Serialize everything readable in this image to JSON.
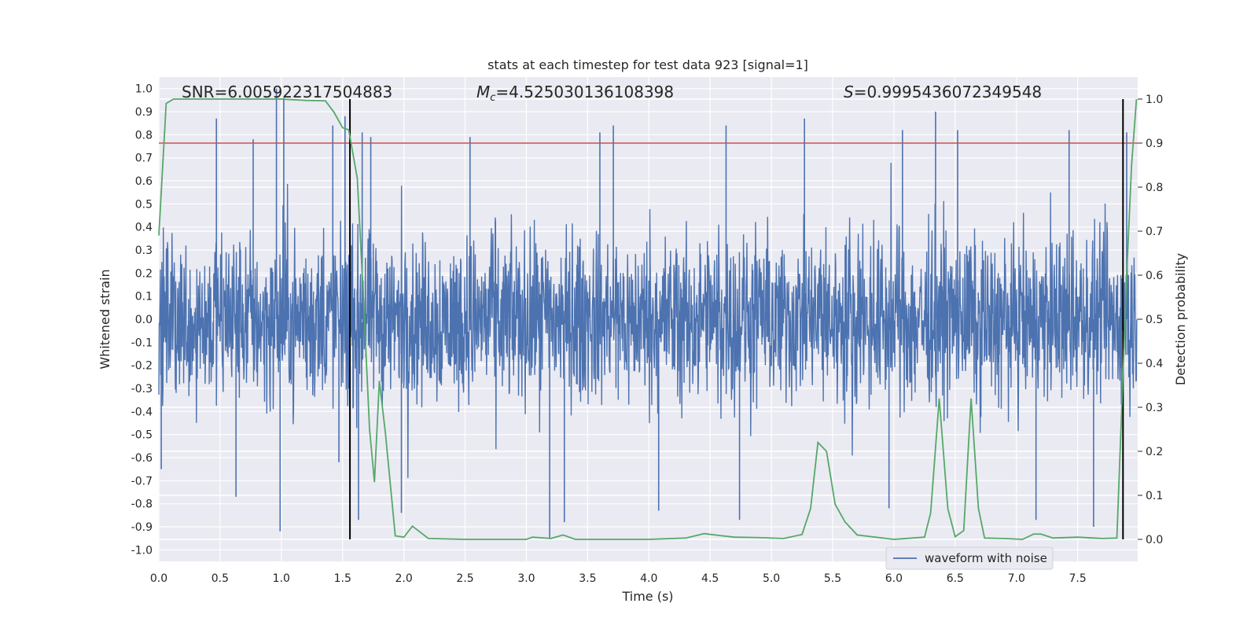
{
  "chart_data": {
    "type": "line",
    "title": "stats at each timestep for test data 923 [signal=1]",
    "xlabel": "Time (s)",
    "ylabel_left": "Whitened strain",
    "ylabel_right": "Detection probability",
    "xlim": [
      0.0,
      7.99
    ],
    "ylim_left": [
      -1.05,
      1.05
    ],
    "ylim_right": [
      -0.05,
      1.05
    ],
    "x_ticks": [
      "0.0",
      "0.5",
      "1.0",
      "1.5",
      "2.0",
      "2.5",
      "3.0",
      "3.5",
      "4.0",
      "4.5",
      "5.0",
      "5.5",
      "6.0",
      "6.5",
      "7.0",
      "7.5"
    ],
    "y_ticks_left": [
      "-1.0",
      "-0.9",
      "-0.8",
      "-0.7",
      "-0.6",
      "-0.5",
      "-0.4",
      "-0.3",
      "-0.2",
      "-0.1",
      "0.0",
      "0.1",
      "0.2",
      "0.3",
      "0.4",
      "0.5",
      "0.6",
      "0.7",
      "0.8",
      "0.9",
      "1.0"
    ],
    "y_ticks_right": [
      "0.0",
      "0.1",
      "0.2",
      "0.3",
      "0.4",
      "0.5",
      "0.6",
      "0.7",
      "0.8",
      "0.9",
      "1.0"
    ],
    "annotations": {
      "snr_label": "SNR",
      "snr_value": "=6.005922317504883",
      "mc_symbol": "M",
      "mc_subscript": "c",
      "mc_value": "=4.525030136108398",
      "s_symbol": "S",
      "s_value": "=0.9995436072349548"
    },
    "threshold": {
      "value": 0.9,
      "axis": "right",
      "color": "#c44e52"
    },
    "vertical_markers": [
      1.56,
      7.87
    ],
    "grid": true,
    "legend": {
      "position": "bottom-right",
      "entries": [
        "waveform with noise"
      ]
    },
    "series": [
      {
        "name": "waveform with noise",
        "axis": "left",
        "color": "#4c72b0",
        "style": "dense noisy waveform",
        "typical_envelope": 0.42,
        "notable_peaks": [
          {
            "x": 0.47,
            "y": 0.87
          },
          {
            "x": 0.77,
            "y": 0.78
          },
          {
            "x": 0.96,
            "y": 1.0
          },
          {
            "x": 1.02,
            "y": 0.96
          },
          {
            "x": 1.42,
            "y": 0.84
          },
          {
            "x": 1.52,
            "y": 0.88
          },
          {
            "x": 1.66,
            "y": 0.81
          },
          {
            "x": 1.73,
            "y": 0.79
          },
          {
            "x": 2.54,
            "y": 0.79
          },
          {
            "x": 3.6,
            "y": 0.81
          },
          {
            "x": 3.71,
            "y": 0.84
          },
          {
            "x": 4.63,
            "y": 0.84
          },
          {
            "x": 5.27,
            "y": 0.87
          },
          {
            "x": 6.07,
            "y": 0.82
          },
          {
            "x": 6.34,
            "y": 0.9
          },
          {
            "x": 6.52,
            "y": 0.82
          },
          {
            "x": 7.43,
            "y": 0.82
          },
          {
            "x": 7.9,
            "y": 0.81
          }
        ],
        "notable_troughs": [
          {
            "x": 0.02,
            "y": -0.65
          },
          {
            "x": 0.63,
            "y": -0.77
          },
          {
            "x": 0.99,
            "y": -0.92
          },
          {
            "x": 1.47,
            "y": -0.62
          },
          {
            "x": 1.63,
            "y": -0.87
          },
          {
            "x": 1.98,
            "y": -0.84
          },
          {
            "x": 3.19,
            "y": -0.95
          },
          {
            "x": 3.31,
            "y": -0.88
          },
          {
            "x": 4.08,
            "y": -0.83
          },
          {
            "x": 4.74,
            "y": -0.87
          },
          {
            "x": 5.96,
            "y": -0.82
          },
          {
            "x": 7.16,
            "y": -0.87
          },
          {
            "x": 7.63,
            "y": -0.9
          }
        ]
      },
      {
        "name": "",
        "axis": "right",
        "color": "#55a868",
        "points": [
          [
            0.0,
            0.69
          ],
          [
            0.06,
            0.99
          ],
          [
            0.12,
            1.0
          ],
          [
            0.5,
            1.0
          ],
          [
            1.0,
            1.0
          ],
          [
            1.2,
            0.997
          ],
          [
            1.36,
            0.996
          ],
          [
            1.43,
            0.97
          ],
          [
            1.5,
            0.935
          ],
          [
            1.55,
            0.93
          ],
          [
            1.62,
            0.82
          ],
          [
            1.67,
            0.55
          ],
          [
            1.72,
            0.25
          ],
          [
            1.76,
            0.13
          ],
          [
            1.8,
            0.36
          ],
          [
            1.85,
            0.24
          ],
          [
            1.93,
            0.008
          ],
          [
            2.0,
            0.005
          ],
          [
            2.07,
            0.03
          ],
          [
            2.2,
            0.002
          ],
          [
            2.5,
            0.0
          ],
          [
            2.8,
            0.0
          ],
          [
            3.0,
            0.0
          ],
          [
            3.05,
            0.005
          ],
          [
            3.2,
            0.002
          ],
          [
            3.3,
            0.01
          ],
          [
            3.4,
            0.0
          ],
          [
            4.0,
            0.0
          ],
          [
            4.3,
            0.003
          ],
          [
            4.45,
            0.013
          ],
          [
            4.6,
            0.008
          ],
          [
            4.7,
            0.005
          ],
          [
            4.9,
            0.004
          ],
          [
            5.1,
            0.002
          ],
          [
            5.25,
            0.011
          ],
          [
            5.32,
            0.07
          ],
          [
            5.38,
            0.22
          ],
          [
            5.45,
            0.2
          ],
          [
            5.52,
            0.08
          ],
          [
            5.6,
            0.04
          ],
          [
            5.7,
            0.01
          ],
          [
            6.0,
            0.0
          ],
          [
            6.25,
            0.005
          ],
          [
            6.3,
            0.06
          ],
          [
            6.37,
            0.32
          ],
          [
            6.44,
            0.07
          ],
          [
            6.5,
            0.006
          ],
          [
            6.57,
            0.02
          ],
          [
            6.63,
            0.32
          ],
          [
            6.69,
            0.07
          ],
          [
            6.74,
            0.003
          ],
          [
            6.9,
            0.002
          ],
          [
            7.05,
            0.0
          ],
          [
            7.14,
            0.012
          ],
          [
            7.2,
            0.012
          ],
          [
            7.3,
            0.003
          ],
          [
            7.5,
            0.005
          ],
          [
            7.7,
            0.002
          ],
          [
            7.82,
            0.003
          ],
          [
            7.86,
            0.3
          ],
          [
            7.9,
            0.6
          ],
          [
            7.94,
            0.85
          ],
          [
            7.98,
            1.0
          ]
        ]
      }
    ]
  }
}
